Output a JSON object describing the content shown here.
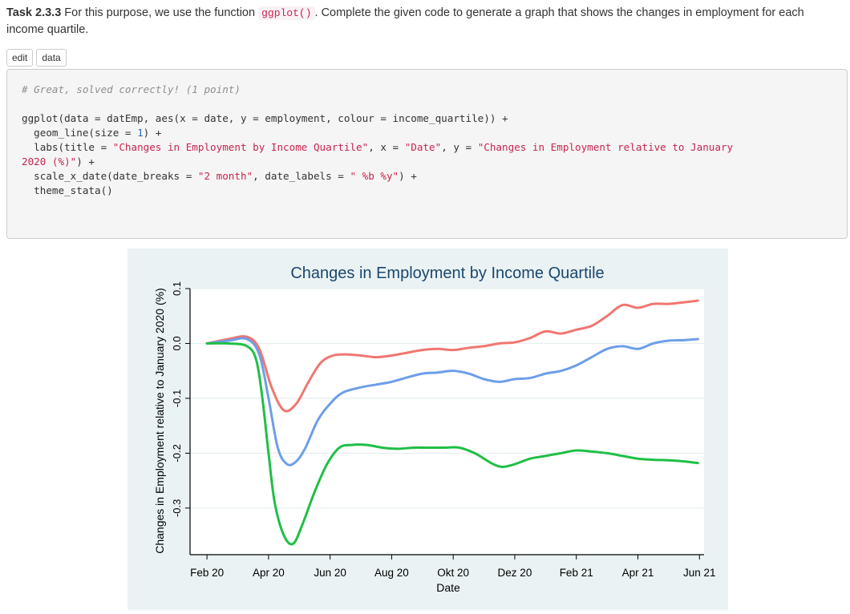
{
  "task": {
    "label": "Task 2.3.3",
    "text_before": " For this purpose, we use the function ",
    "code_inline": "ggplot()",
    "text_after": ". Complete the given code to generate a graph that shows the changes in employment for each income quartile."
  },
  "buttons": {
    "edit": "edit",
    "data": "data"
  },
  "code": {
    "comment": "# Great, solved correctly! (1 point)",
    "line1": "ggplot(data = datEmp, aes(x = date, y = employment, colour = income_quartile)) +",
    "line2_a": "  geom_line(size = ",
    "line2_num": "1",
    "line2_b": ") +",
    "line3_a": "  labs(title = ",
    "line3_s1": "\"Changes in Employment by Income Quartile\"",
    "line3_b": ", x = ",
    "line3_s2": "\"Date\"",
    "line3_c": ", y = ",
    "line3_s3": "\"Changes in Employment relative to January",
    "line4_s": "2020 (%)\"",
    "line4_a": ") +",
    "line5_a": "  scale_x_date(date_breaks = ",
    "line5_s1": "\"2 month\"",
    "line5_b": ", date_labels = ",
    "line5_s2": "\" %b %y\"",
    "line5_c": ") +",
    "line6": "  theme_stata()"
  },
  "chart_data": {
    "type": "line",
    "title": "Changes in Employment by Income Quartile",
    "xlabel": "Date",
    "ylabel": "Changes in Employment relative to January 2020 (%)",
    "x_ticks": [
      "Feb 20",
      "Apr 20",
      "Jun 20",
      "Aug 20",
      "Okt 20",
      "Dez 20",
      "Feb 21",
      "Apr 21",
      "Jun 21"
    ],
    "y_ticks": [
      -0.3,
      -0.2,
      -0.1,
      0.0,
      0.1
    ],
    "y_tick_labels": [
      "-0.3",
      "-0.2",
      "-0.1",
      "0.0",
      "0.1"
    ],
    "ylim": [
      -0.385,
      0.1
    ],
    "xlim": [
      -0.55,
      16.15
    ],
    "x_unit_note": "months since Feb 2020",
    "grid": true,
    "legend": "none",
    "series": [
      {
        "color": "#f07670",
        "x": [
          0,
          0.7,
          1.3,
          1.7,
          2.1,
          2.5,
          2.9,
          3.3,
          3.7,
          4.1,
          4.5,
          5.0,
          5.5,
          6.0,
          6.5,
          7.0,
          7.5,
          8.0,
          8.5,
          9.0,
          9.5,
          10.0,
          10.5,
          11.0,
          11.5,
          12.0,
          12.5,
          13.0,
          13.5,
          14.0,
          14.5,
          15.0,
          15.5,
          15.95
        ],
        "values": [
          0.0,
          0.008,
          0.012,
          -0.01,
          -0.08,
          -0.122,
          -0.11,
          -0.07,
          -0.035,
          -0.022,
          -0.02,
          -0.022,
          -0.025,
          -0.022,
          -0.017,
          -0.012,
          -0.01,
          -0.012,
          -0.008,
          -0.005,
          0.0,
          0.002,
          0.01,
          0.022,
          0.018,
          0.025,
          0.032,
          0.05,
          0.07,
          0.065,
          0.072,
          0.072,
          0.075,
          0.078
        ]
      },
      {
        "color": "#6d9ee8",
        "x": [
          0,
          0.7,
          1.3,
          1.7,
          2.0,
          2.3,
          2.6,
          2.9,
          3.2,
          3.6,
          4.0,
          4.4,
          5.0,
          5.5,
          6.0,
          6.5,
          7.0,
          7.5,
          8.0,
          8.5,
          9.0,
          9.5,
          10.0,
          10.5,
          11.0,
          11.5,
          12.0,
          12.5,
          13.0,
          13.5,
          14.0,
          14.5,
          15.0,
          15.5,
          15.95
        ],
        "values": [
          0.0,
          0.005,
          0.008,
          -0.02,
          -0.1,
          -0.19,
          -0.22,
          -0.215,
          -0.19,
          -0.14,
          -0.11,
          -0.09,
          -0.08,
          -0.075,
          -0.07,
          -0.062,
          -0.055,
          -0.053,
          -0.05,
          -0.055,
          -0.065,
          -0.07,
          -0.065,
          -0.063,
          -0.055,
          -0.05,
          -0.04,
          -0.025,
          -0.01,
          -0.005,
          -0.01,
          0.0,
          0.005,
          0.006,
          0.008
        ]
      },
      {
        "color": "#1fbf46",
        "x": [
          0,
          0.7,
          1.3,
          1.6,
          1.8,
          2.0,
          2.2,
          2.5,
          2.8,
          3.1,
          3.5,
          3.9,
          4.3,
          4.7,
          5.2,
          5.7,
          6.2,
          6.7,
          7.2,
          7.7,
          8.2,
          8.7,
          9.0,
          9.3,
          9.6,
          10.0,
          10.5,
          11.0,
          11.5,
          12.0,
          12.5,
          13.0,
          13.5,
          14.0,
          14.5,
          15.0,
          15.5,
          15.95
        ],
        "values": [
          0.0,
          0.0,
          -0.005,
          -0.03,
          -0.1,
          -0.2,
          -0.29,
          -0.35,
          -0.365,
          -0.33,
          -0.27,
          -0.22,
          -0.19,
          -0.185,
          -0.185,
          -0.19,
          -0.192,
          -0.19,
          -0.19,
          -0.19,
          -0.19,
          -0.2,
          -0.21,
          -0.22,
          -0.225,
          -0.22,
          -0.21,
          -0.205,
          -0.2,
          -0.195,
          -0.197,
          -0.2,
          -0.205,
          -0.21,
          -0.212,
          -0.213,
          -0.215,
          -0.218
        ]
      }
    ]
  }
}
